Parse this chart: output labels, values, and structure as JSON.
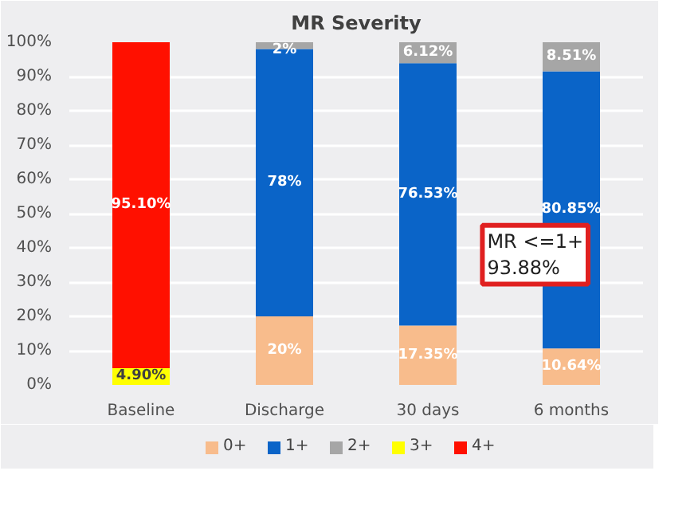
{
  "chart_data": {
    "type": "bar",
    "title": "MR Severity",
    "stacked": true,
    "categories": [
      "Baseline",
      "Discharge",
      "30 days",
      "6 months"
    ],
    "series": [
      {
        "name": "0+",
        "color": "#f8bc8c",
        "values": [
          0,
          20,
          17.35,
          10.64
        ],
        "value_labels": [
          null,
          "20%",
          "17.35%",
          "10.64%"
        ]
      },
      {
        "name": "1+",
        "color": "#0a64c8",
        "values": [
          0,
          78,
          76.53,
          80.85
        ],
        "value_labels": [
          null,
          "78%",
          "76.53%",
          "80.85%"
        ]
      },
      {
        "name": "2+",
        "color": "#a6a6a6",
        "values": [
          0,
          2,
          6.12,
          8.51
        ],
        "value_labels": [
          null,
          "2%",
          "6.12%",
          "8.51%"
        ]
      },
      {
        "name": "3+",
        "color": "#ffff00",
        "values": [
          4.9,
          0,
          0,
          0
        ],
        "value_labels": [
          "4.90%",
          null,
          null,
          null
        ]
      },
      {
        "name": "4+",
        "color": "#ff1000",
        "values": [
          95.1,
          0,
          0,
          0
        ],
        "value_labels": [
          "95.10%",
          null,
          null,
          null
        ]
      }
    ],
    "ylim": [
      0,
      100
    ],
    "yticks": [
      {
        "value": 0,
        "label": "0%"
      },
      {
        "value": 10,
        "label": "10%"
      },
      {
        "value": 20,
        "label": "20%"
      },
      {
        "value": 30,
        "label": "30%"
      },
      {
        "value": 40,
        "label": "40%"
      },
      {
        "value": 50,
        "label": "50%"
      },
      {
        "value": 60,
        "label": "60%"
      },
      {
        "value": 70,
        "label": "70%"
      },
      {
        "value": 80,
        "label": "80%"
      },
      {
        "value": 90,
        "label": "90%"
      },
      {
        "value": 100,
        "label": "100%"
      }
    ],
    "grid": "y",
    "legend": "bottom",
    "annotations": [
      "MR <=1+\n93.88%"
    ]
  }
}
